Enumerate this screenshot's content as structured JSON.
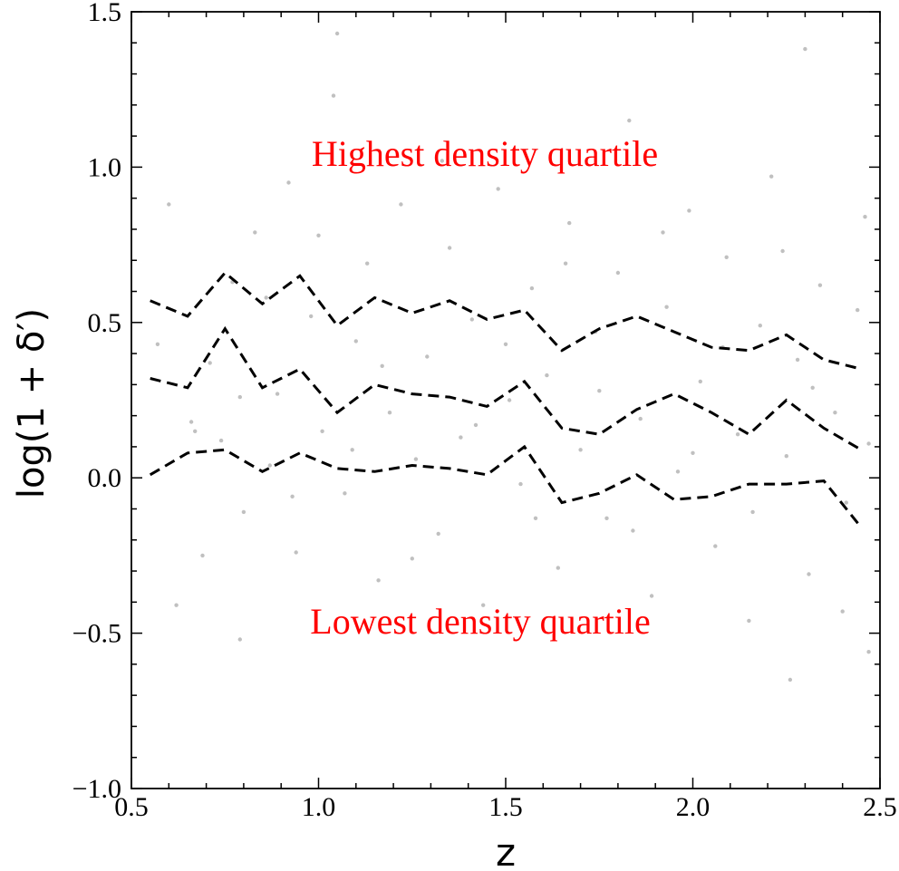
{
  "chart_data": {
    "type": "scatter",
    "title": "",
    "xlabel": "z",
    "ylabel": "log(1 + δ′)",
    "xlim": [
      0.5,
      2.5
    ],
    "ylim": [
      -1.0,
      1.5
    ],
    "x_ticks": [
      0.5,
      1.0,
      1.5,
      2.0,
      2.5
    ],
    "x_tick_labels": [
      "0.5",
      "1.0",
      "1.5",
      "2.0",
      "2.5"
    ],
    "y_ticks": [
      -1.0,
      -0.5,
      0.0,
      0.5,
      1.0,
      1.5
    ],
    "y_tick_labels": [
      "−1.0",
      "−0.5",
      "0.0",
      "0.5",
      "1.0",
      "1.5"
    ],
    "grid": false,
    "scatter_color": "#b0b0b0",
    "line_color": "#000000",
    "annotation_color": "#ff0000",
    "annotations": [
      "Highest density quartile",
      "Lowest density quartile"
    ],
    "series": [
      {
        "style": "dashed",
        "x": [
          0.55,
          0.65,
          0.75,
          0.85,
          0.95,
          1.05,
          1.15,
          1.25,
          1.35,
          1.45,
          1.55,
          1.65,
          1.75,
          1.85,
          1.95,
          2.05,
          2.15,
          2.25,
          2.35,
          2.45
        ],
        "y": [
          0.57,
          0.52,
          0.66,
          0.56,
          0.65,
          0.49,
          0.58,
          0.53,
          0.57,
          0.51,
          0.54,
          0.41,
          0.48,
          0.52,
          0.47,
          0.42,
          0.41,
          0.46,
          0.38,
          0.35
        ]
      },
      {
        "style": "dashed",
        "x": [
          0.55,
          0.65,
          0.75,
          0.85,
          0.95,
          1.05,
          1.15,
          1.25,
          1.35,
          1.45,
          1.55,
          1.65,
          1.75,
          1.85,
          1.95,
          2.05,
          2.15,
          2.25,
          2.35,
          2.45
        ],
        "y": [
          0.32,
          0.29,
          0.48,
          0.29,
          0.35,
          0.21,
          0.3,
          0.27,
          0.26,
          0.23,
          0.31,
          0.16,
          0.14,
          0.22,
          0.27,
          0.21,
          0.14,
          0.25,
          0.16,
          0.09
        ]
      },
      {
        "style": "dashed",
        "x": [
          0.55,
          0.65,
          0.75,
          0.85,
          0.95,
          1.05,
          1.15,
          1.25,
          1.35,
          1.45,
          1.55,
          1.65,
          1.75,
          1.85,
          1.95,
          2.05,
          2.15,
          2.25,
          2.35,
          2.45
        ],
        "y": [
          0.01,
          0.08,
          0.09,
          0.02,
          0.08,
          0.03,
          0.02,
          0.04,
          0.03,
          0.01,
          0.1,
          -0.08,
          -0.05,
          0.01,
          -0.07,
          -0.06,
          -0.02,
          -0.02,
          -0.01,
          -0.16
        ]
      }
    ],
    "scatter_points": [
      [
        0.57,
        0.43
      ],
      [
        0.62,
        -0.41
      ],
      [
        0.66,
        0.18
      ],
      [
        0.71,
        0.37
      ],
      [
        0.74,
        0.12
      ],
      [
        0.77,
        0.63
      ],
      [
        0.8,
        -0.11
      ],
      [
        0.83,
        0.79
      ],
      [
        0.87,
        0.04
      ],
      [
        0.89,
        0.27
      ],
      [
        0.92,
        0.95
      ],
      [
        0.94,
        -0.24
      ],
      [
        0.98,
        0.52
      ],
      [
        1.01,
        0.15
      ],
      [
        1.04,
        1.23
      ],
      [
        1.07,
        -0.05
      ],
      [
        1.1,
        0.44
      ],
      [
        1.13,
        0.69
      ],
      [
        1.16,
        -0.33
      ],
      [
        1.19,
        0.21
      ],
      [
        1.22,
        0.88
      ],
      [
        1.26,
        0.06
      ],
      [
        1.29,
        0.39
      ],
      [
        1.32,
        -0.18
      ],
      [
        1.35,
        0.74
      ],
      [
        1.38,
        0.13
      ],
      [
        1.41,
        0.51
      ],
      [
        1.44,
        -0.41
      ],
      [
        1.48,
        0.93
      ],
      [
        1.51,
        0.25
      ],
      [
        1.54,
        -0.02
      ],
      [
        1.57,
        0.61
      ],
      [
        1.61,
        0.33
      ],
      [
        1.64,
        -0.29
      ],
      [
        1.67,
        0.82
      ],
      [
        1.7,
        0.09
      ],
      [
        1.74,
        0.47
      ],
      [
        1.77,
        -0.13
      ],
      [
        1.8,
        0.66
      ],
      [
        1.83,
        1.15
      ],
      [
        1.86,
        0.19
      ],
      [
        1.89,
        -0.38
      ],
      [
        1.93,
        0.55
      ],
      [
        1.96,
        0.02
      ],
      [
        1.99,
        0.86
      ],
      [
        2.02,
        0.31
      ],
      [
        2.06,
        -0.22
      ],
      [
        2.09,
        0.71
      ],
      [
        2.12,
        0.14
      ],
      [
        2.15,
        -0.46
      ],
      [
        2.18,
        0.49
      ],
      [
        2.21,
        0.97
      ],
      [
        2.25,
        0.07
      ],
      [
        2.28,
        0.38
      ],
      [
        2.31,
        -0.31
      ],
      [
        2.34,
        0.62
      ],
      [
        2.38,
        0.21
      ],
      [
        2.41,
        -0.08
      ],
      [
        2.44,
        0.54
      ],
      [
        2.47,
        0.11
      ],
      [
        0.6,
        0.88
      ],
      [
        0.69,
        -0.25
      ],
      [
        0.79,
        0.26
      ],
      [
        0.86,
        0.58
      ],
      [
        0.93,
        -0.06
      ],
      [
        1.0,
        0.78
      ],
      [
        1.09,
        0.09
      ],
      [
        1.17,
        0.36
      ],
      [
        1.25,
        -0.26
      ],
      [
        1.33,
        1.02
      ],
      [
        1.42,
        0.17
      ],
      [
        1.5,
        0.43
      ],
      [
        1.58,
        -0.13
      ],
      [
        1.66,
        0.69
      ],
      [
        1.75,
        0.28
      ],
      [
        1.84,
        -0.17
      ],
      [
        1.92,
        0.79
      ],
      [
        2.0,
        0.08
      ],
      [
        2.08,
        0.42
      ],
      [
        2.16,
        -0.11
      ],
      [
        2.24,
        0.73
      ],
      [
        2.32,
        0.29
      ],
      [
        2.4,
        -0.43
      ],
      [
        2.46,
        0.84
      ],
      [
        1.05,
        1.43
      ],
      [
        2.3,
        1.38
      ],
      [
        0.79,
        -0.52
      ],
      [
        2.47,
        -0.56
      ],
      [
        2.26,
        -0.65
      ],
      [
        0.67,
        0.15
      ]
    ]
  }
}
